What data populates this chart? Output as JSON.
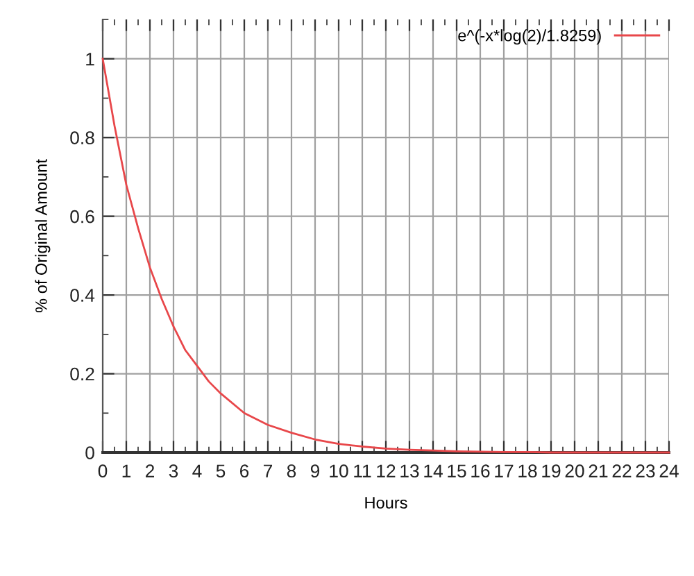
{
  "chart_data": {
    "type": "line",
    "xlabel": "Hours",
    "ylabel": "% of Original Amount",
    "x": [
      0,
      0.5,
      1,
      1.5,
      2,
      2.5,
      3,
      3.5,
      4,
      4.5,
      5,
      6,
      7,
      8,
      9,
      10,
      11,
      12,
      13,
      14,
      15,
      16,
      17,
      18,
      19,
      20,
      21,
      22,
      23,
      24
    ],
    "series": [
      {
        "name": "e^(-x*log(2)/1.8259)",
        "color": "#e8474a",
        "values": [
          1,
          0.83,
          0.68,
          0.57,
          0.47,
          0.39,
          0.32,
          0.26,
          0.22,
          0.18,
          0.15,
          0.1,
          0.07,
          0.05,
          0.033,
          0.022,
          0.015,
          0.01,
          0.007,
          0.005,
          0.003,
          0.002,
          0.001,
          0.001,
          0,
          0,
          0,
          0,
          0,
          0
        ]
      }
    ],
    "xlim": [
      0,
      24
    ],
    "ylim": [
      0,
      1.1
    ],
    "xticks": [
      0,
      {
        "value": 0.5,
        "label": null
      },
      1,
      {
        "value": 1.5,
        "label": null
      },
      2,
      {
        "value": 2.5,
        "label": null
      },
      3,
      {
        "value": 3.5,
        "label": null
      },
      4,
      {
        "value": 4.5,
        "label": null
      },
      5,
      {
        "value": 5.5,
        "label": null
      },
      6,
      {
        "value": 6.5,
        "label": null
      },
      7,
      {
        "value": 7.5,
        "label": null
      },
      8,
      {
        "value": 8.5,
        "label": null
      },
      9,
      {
        "value": 9.5,
        "label": null
      },
      10,
      {
        "value": 10.5,
        "label": null
      },
      11,
      {
        "value": 11.5,
        "label": null
      },
      12,
      {
        "value": 12.5,
        "label": null
      },
      13,
      {
        "value": 13.5,
        "label": null
      },
      14,
      {
        "value": 14.5,
        "label": null
      },
      15,
      {
        "value": 15.5,
        "label": null
      },
      16,
      {
        "value": 16.5,
        "label": null
      },
      17,
      {
        "value": 17.5,
        "label": null
      },
      18,
      {
        "value": 18.5,
        "label": null
      },
      19,
      {
        "value": 19.5,
        "label": null
      },
      20,
      {
        "value": 20.5,
        "label": null
      },
      21,
      {
        "value": 21.5,
        "label": null
      },
      22,
      {
        "value": 22.5,
        "label": null
      },
      23,
      {
        "value": 23.5,
        "label": null
      },
      24
    ],
    "yticks": [
      0,
      {
        "value": 0.1,
        "label": null
      },
      0.2,
      {
        "value": 0.3,
        "label": null
      },
      0.4,
      {
        "value": 0.5,
        "label": null
      },
      0.6,
      {
        "value": 0.7,
        "label": null
      },
      0.8,
      {
        "value": 0.9,
        "label": null
      },
      1,
      {
        "value": 1.1,
        "label": null
      }
    ],
    "grid": true,
    "legend": "top right",
    "marker": "none",
    "line_style": "solid"
  }
}
